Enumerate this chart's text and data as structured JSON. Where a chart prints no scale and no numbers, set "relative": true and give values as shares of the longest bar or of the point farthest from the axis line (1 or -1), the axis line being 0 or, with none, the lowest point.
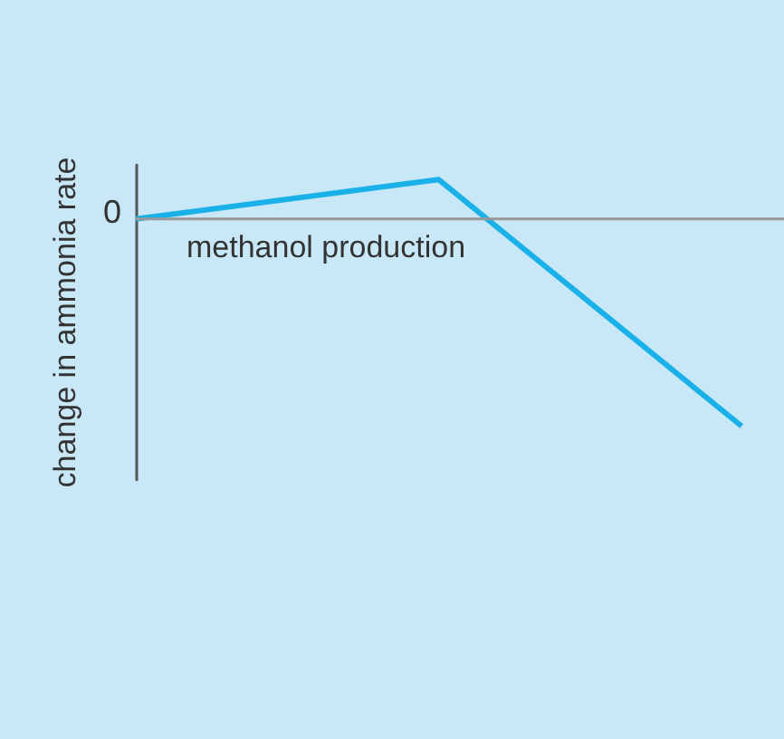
{
  "chart_data": {
    "type": "line",
    "relative": true,
    "xlabel": "methanol production",
    "ylabel": "change in ammonia rate",
    "categories": [
      null,
      null,
      null
    ],
    "series": [
      {
        "color": "#1ab0e8",
        "values": [
          0,
          0.19,
          -1
        ]
      }
    ],
    "annotations": [
      "0"
    ],
    "marker": "none",
    "line_style": "solid",
    "grid": false
  }
}
